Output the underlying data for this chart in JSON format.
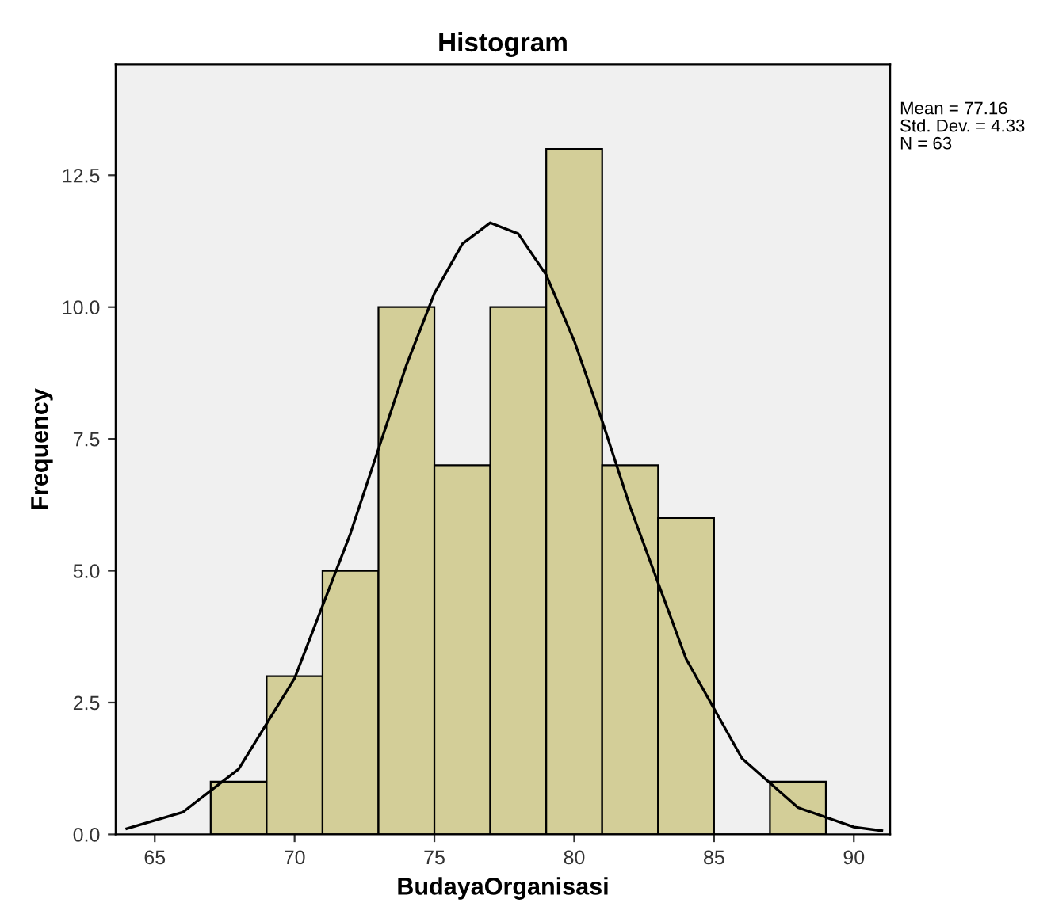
{
  "chart_data": {
    "type": "histogram",
    "title": "Histogram",
    "xlabel": "BudayaOrganisasi",
    "ylabel": "Frequency",
    "bins": [
      67,
      69,
      71,
      73,
      75,
      77,
      79,
      81,
      83,
      85,
      87,
      89
    ],
    "values": [
      1,
      3,
      5,
      10,
      7,
      10,
      13,
      7,
      6,
      0,
      1
    ],
    "color": "#d3ce98",
    "series": [
      {
        "type": "line",
        "color": "#000000",
        "x": [
          64,
          66,
          68,
          70,
          72,
          73,
          74,
          75,
          76,
          77,
          78,
          79,
          80,
          81,
          82,
          84,
          86,
          88,
          90,
          91
        ],
        "values": [
          0.11,
          0.42,
          1.24,
          2.96,
          5.71,
          7.31,
          8.9,
          10.26,
          11.2,
          11.6,
          11.39,
          10.61,
          9.36,
          7.84,
          6.21,
          3.33,
          1.44,
          0.51,
          0.14,
          0.07
        ]
      }
    ],
    "xlim": [
      63.6,
      91.3
    ],
    "ylim": [
      0,
      14.6
    ],
    "xticks": [
      65,
      70,
      75,
      80,
      85,
      90
    ],
    "yticks": [
      {
        "value": 0,
        "label": "0.0"
      },
      {
        "value": 2.5,
        "label": "2.5"
      },
      {
        "value": 5,
        "label": "5.0"
      },
      {
        "value": 7.5,
        "label": "7.5"
      },
      {
        "value": 10,
        "label": "10.0"
      },
      {
        "value": 12.5,
        "label": "12.5"
      }
    ],
    "annotations": [
      "Mean = 77.16",
      "Std. Dev. = 4.33",
      "N = 63"
    ],
    "grid": false,
    "legend": false
  }
}
